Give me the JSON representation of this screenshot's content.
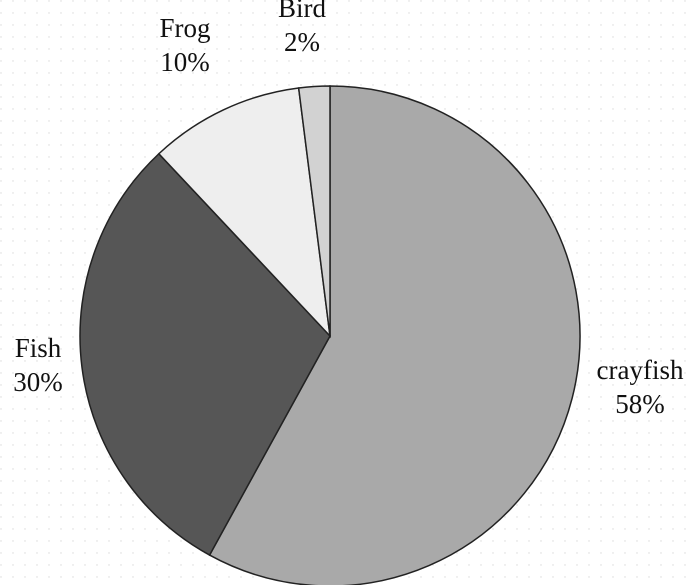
{
  "chart_data": {
    "type": "pie",
    "categories": [
      "crayfish",
      "Fish",
      "Frog",
      "Bird"
    ],
    "values": [
      58,
      30,
      10,
      2
    ],
    "value_labels": [
      "58%",
      "30%",
      "10%",
      "2%"
    ],
    "colors": [
      "#a9a9a9",
      "#565656",
      "#eeeeee",
      "#d2d2d2"
    ]
  }
}
